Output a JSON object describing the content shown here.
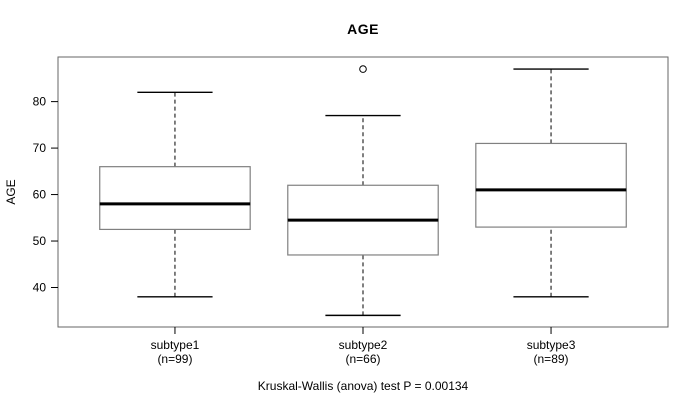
{
  "title": "AGE",
  "footnote": "Kruskal-Wallis (anova) test P = 0.00134",
  "colors": {
    "background": "#ffffff",
    "plot_border": "#666666",
    "box_border": "#808080",
    "box_fill": "#ffffff",
    "median": "#000000",
    "whisker": "#000000",
    "text": "#000000"
  },
  "chart_data": {
    "type": "boxplot",
    "title": "AGE",
    "xlabel": "",
    "ylabel": "AGE",
    "ylim": [
      31.5,
      89.6
    ],
    "xlim": [
      0.378,
      3.622
    ],
    "yticks": [
      40,
      50,
      60,
      70,
      80
    ],
    "grid": "off",
    "legend": "none",
    "box_width": 0.8,
    "cap_width": 0.4,
    "categories": [
      "subtype1",
      "subtype2",
      "subtype3"
    ],
    "category_sublabels": [
      "(n=99)",
      "(n=66)",
      "(n=89)"
    ],
    "groups": [
      {
        "label": "subtype1",
        "n": 99,
        "whisker_low": 38,
        "q1": 52.5,
        "median": 58,
        "q3": 66,
        "whisker_high": 82,
        "outliers": []
      },
      {
        "label": "subtype2",
        "n": 66,
        "whisker_low": 34,
        "q1": 47,
        "median": 54.5,
        "q3": 62,
        "whisker_high": 77,
        "outliers": [
          87
        ]
      },
      {
        "label": "subtype3",
        "n": 89,
        "whisker_low": 38,
        "q1": 53,
        "median": 61,
        "q3": 71,
        "whisker_high": 87,
        "outliers": []
      }
    ]
  }
}
